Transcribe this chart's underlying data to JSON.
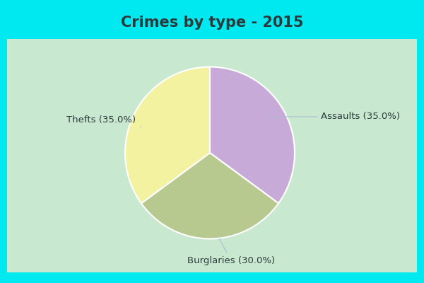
{
  "title": "Crimes by type - 2015",
  "slices": [
    {
      "label": "Assaults (35.0%)",
      "value": 35.0,
      "color": "#c8aad8"
    },
    {
      "label": "Burglaries (30.0%)",
      "value": 30.0,
      "color": "#b8c990"
    },
    {
      "label": "Thefts (35.0%)",
      "value": 35.0,
      "color": "#f2f2a0"
    }
  ],
  "background_cyan": "#00e8f0",
  "background_mint": "#c8e8d0",
  "title_fontsize": 15,
  "label_fontsize": 9.5,
  "startangle": 90,
  "title_color": "#2a3a3a"
}
